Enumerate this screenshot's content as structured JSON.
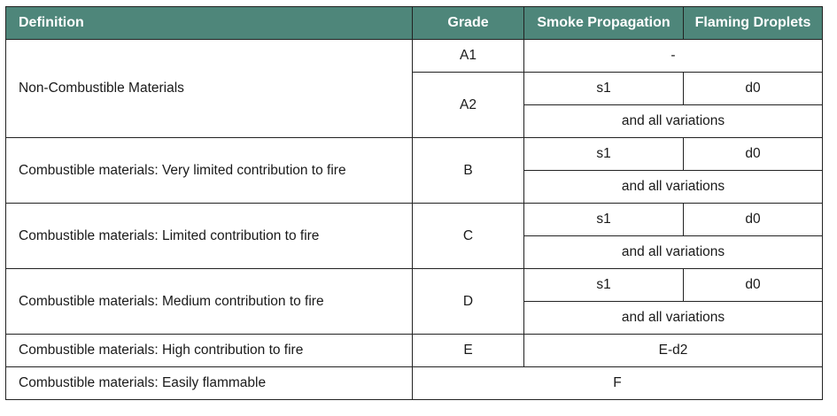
{
  "headers": {
    "definition": "Definition",
    "grade": "Grade",
    "smoke": "Smoke Propagation",
    "droplets": "Flaming Droplets"
  },
  "header_color": "#4e867a",
  "rows": [
    {
      "definition": "Non-Combustible Materials",
      "grades": [
        "A1",
        "A2"
      ],
      "a1_value": "-",
      "smoke": "s1",
      "droplets": "d0",
      "variations": "and all variations"
    },
    {
      "definition": "Combustible materials: Very limited contribution to fire",
      "grade": "B",
      "smoke": "s1",
      "droplets": "d0",
      "variations": "and all variations"
    },
    {
      "definition": "Combustible materials: Limited contribution to fire",
      "grade": "C",
      "smoke": "s1",
      "droplets": "d0",
      "variations": "and all variations"
    },
    {
      "definition": "Combustible materials: Medium contribution to fire",
      "grade": "D",
      "smoke": "s1",
      "droplets": "d0",
      "variations": "and all variations"
    },
    {
      "definition": "Combustible materials: High contribution to fire",
      "grade": "E",
      "value": "E-d2"
    },
    {
      "definition": "Combustible materials: Easily flammable",
      "value": "F"
    }
  ]
}
